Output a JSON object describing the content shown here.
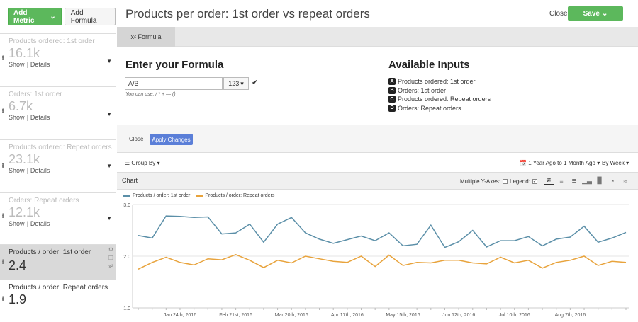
{
  "sidebar": {
    "add_metric_label": "Add Metric",
    "add_formula_label": "Add Formula",
    "metrics": [
      {
        "label": "Products ordered: 1st order",
        "value": "16.1k",
        "show": "Show",
        "details": "Details"
      },
      {
        "label": "Orders: 1st order",
        "value": "6.7k",
        "show": "Show",
        "details": "Details"
      },
      {
        "label": "Products ordered: Repeat orders",
        "value": "23.1k",
        "show": "Show",
        "details": "Details"
      },
      {
        "label": "Orders: Repeat orders",
        "value": "12.1k",
        "show": "Show",
        "details": "Details"
      },
      {
        "label": "Products / order: 1st order",
        "value": "2.4"
      },
      {
        "label": "Products / order: Repeat orders",
        "value": "1.9"
      }
    ]
  },
  "header": {
    "title": "Products per order: 1st order vs repeat orders",
    "close_label": "Close",
    "save_label": "Save"
  },
  "tabs": [
    {
      "label": "x² Formula"
    }
  ],
  "formula": {
    "heading": "Enter your Formula",
    "value": "A/B",
    "number_format": "123",
    "hint": "You can use: / * + — ()"
  },
  "inputs": {
    "heading": "Available Inputs",
    "items": [
      {
        "letter": "A",
        "label": "Products ordered: 1st order"
      },
      {
        "letter": "B",
        "label": "Orders: 1st order"
      },
      {
        "letter": "C",
        "label": "Products ordered: Repeat orders"
      },
      {
        "letter": "D",
        "label": "Orders: Repeat orders"
      }
    ]
  },
  "apply": {
    "close_label": "Close",
    "apply_label": "Apply Changes"
  },
  "toolbar": {
    "group_by_label": "Group By",
    "date_range_label": "1 Year Ago to 1 Month Ago",
    "interval_label": "By Week"
  },
  "chart_panel": {
    "label": "Chart",
    "multi_y_label": "Multiple Y-Axes:",
    "legend_label": "Legend:"
  },
  "colors": {
    "series_1": "#5b8fa8",
    "series_2": "#e8a33c",
    "accent_green": "#5cb85c",
    "apply_blue": "#5b7fd8"
  },
  "chart_data": {
    "type": "line",
    "title": "",
    "xlabel": "",
    "ylabel": "",
    "ylim": [
      1.0,
      3.0
    ],
    "y_ticks": [
      "3.0",
      "2.0",
      "1.0"
    ],
    "x_ticks": [
      "Jan 24th, 2016",
      "Feb 21st, 2016",
      "Mar 20th, 2016",
      "Apr 17th, 2016",
      "May 15th, 2016",
      "Jun 12th, 2016",
      "Jul 10th, 2016",
      "Aug 7th, 2016"
    ],
    "grid": true,
    "legend": "top-left",
    "series": [
      {
        "name": "Products / order: 1st order",
        "values": [
          2.4,
          2.35,
          2.78,
          2.77,
          2.75,
          2.76,
          2.43,
          2.45,
          2.62,
          2.27,
          2.62,
          2.75,
          2.45,
          2.33,
          2.25,
          2.32,
          2.39,
          2.3,
          2.45,
          2.2,
          2.23,
          2.6,
          2.17,
          2.28,
          2.5,
          2.18,
          2.3,
          2.3,
          2.38,
          2.2,
          2.33,
          2.37,
          2.58,
          2.27,
          2.35,
          2.46
        ]
      },
      {
        "name": "Products / order: Repeat orders",
        "values": [
          1.75,
          1.88,
          1.98,
          1.88,
          1.83,
          1.95,
          1.93,
          2.03,
          1.92,
          1.78,
          1.92,
          1.87,
          2.0,
          1.95,
          1.9,
          1.88,
          2.0,
          1.8,
          2.02,
          1.82,
          1.88,
          1.87,
          1.92,
          1.92,
          1.87,
          1.85,
          1.98,
          1.87,
          1.92,
          1.77,
          1.88,
          1.92,
          2.0,
          1.82,
          1.9,
          1.88
        ]
      }
    ]
  }
}
